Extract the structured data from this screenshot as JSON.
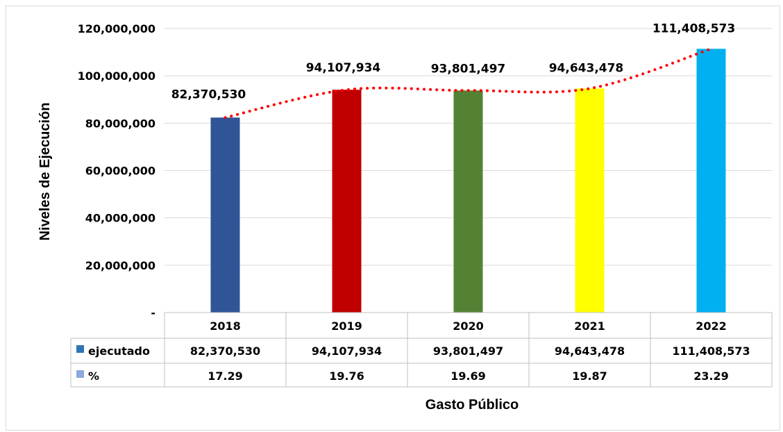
{
  "chart_data": {
    "type": "bar",
    "title": "",
    "xlabel": "Gasto Público",
    "ylabel": "Niveles de Ejecución",
    "ylim": [
      0,
      120000000
    ],
    "yticks": [
      {
        "value": 0,
        "label": "-"
      },
      {
        "value": 20000000,
        "label": "20,000,000"
      },
      {
        "value": 40000000,
        "label": "40,000,000"
      },
      {
        "value": 60000000,
        "label": "60,000,000"
      },
      {
        "value": 80000000,
        "label": "80,000,000"
      },
      {
        "value": 100000000,
        "label": "100,000,000"
      },
      {
        "value": 120000000,
        "label": "120,000,000"
      }
    ],
    "grid": true,
    "categories": [
      "2018",
      "2019",
      "2020",
      "2021",
      "2022"
    ],
    "bar_colors": [
      "#2F5597",
      "#C00000",
      "#548235",
      "#FFFF00",
      "#00B0F0"
    ],
    "series": [
      {
        "name": "ejecutado",
        "values": [
          82370530,
          94107934,
          93801497,
          94643478,
          111408573
        ],
        "labels": [
          "82,370,530",
          "94,107,934",
          "93,801,497",
          "94,643,478",
          "111,408,573"
        ],
        "legend_color": "#2E75B6"
      },
      {
        "name": "%",
        "values": [
          17.29,
          19.76,
          19.69,
          19.87,
          23.29
        ],
        "labels": [
          "17.29",
          "19.76",
          "19.69",
          "19.87",
          "23.29"
        ],
        "legend_color": "#8EA9DB"
      }
    ],
    "trendline": {
      "style": "dotted",
      "color": "#FF0000"
    },
    "data_table": true
  }
}
